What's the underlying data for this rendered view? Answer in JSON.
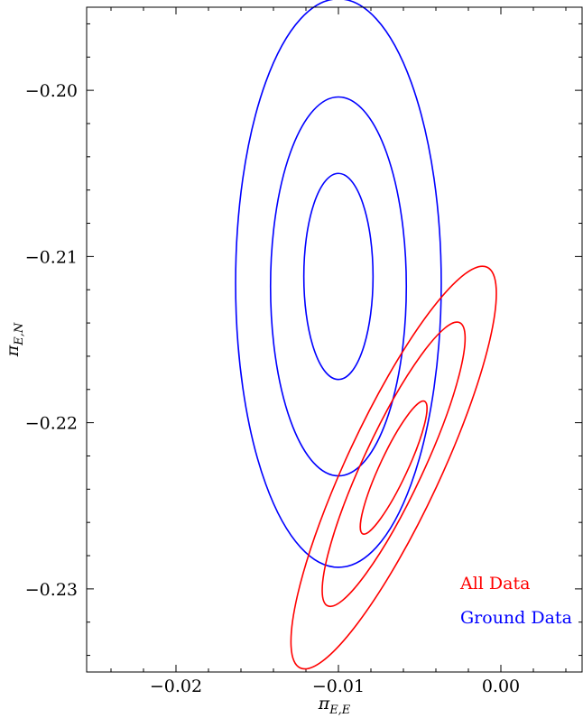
{
  "chart_data": {
    "type": "contour",
    "xlabel": "π",
    "xlabel_sub": "E,E",
    "ylabel": "π",
    "ylabel_sub": "E,N",
    "xlim": [
      -0.0255,
      0.005
    ],
    "ylim": [
      -0.235,
      -0.195
    ],
    "x_ticks_major": [
      -0.02,
      -0.01,
      0.0
    ],
    "x_tick_labels": [
      "−0.02",
      "−0.01",
      "0.00"
    ],
    "y_ticks_major": [
      -0.2,
      -0.21,
      -0.22,
      -0.23
    ],
    "y_tick_labels": [
      "−0.20",
      "−0.21",
      "−0.22",
      "−0.23"
    ],
    "minor_step_x": 0.002,
    "minor_step_y": 0.002,
    "legend": {
      "placement": "lower-right",
      "entries": [
        {
          "label": "All Data",
          "color": "#ff0000"
        },
        {
          "label": "Ground Data",
          "color": "#0000ff"
        }
      ]
    },
    "series": [
      {
        "name": "Ground Data",
        "color": "#0000ff",
        "contours": [
          {
            "center": [
              -0.01,
              -0.2112
            ],
            "half_width": 0.00213,
            "half_height": 0.0062,
            "angle": 0
          },
          {
            "center": [
              -0.01,
              -0.2118
            ],
            "half_width": 0.00418,
            "half_height": 0.0114,
            "angle": 0
          },
          {
            "center": [
              -0.01,
              -0.2116
            ],
            "half_width": 0.00633,
            "half_height": 0.0171,
            "angle": 0
          }
        ]
      },
      {
        "name": "All Data",
        "color": "#ff0000",
        "contours": [
          {
            "center": [
              -0.0066,
              -0.2227
            ],
            "half_width": 0.00085,
            "half_height": 0.0044,
            "angle": 25
          },
          {
            "center": [
              -0.0066,
              -0.2225
            ],
            "half_width": 0.00185,
            "half_height": 0.0094,
            "angle": 25
          },
          {
            "center": [
              -0.0066,
              -0.2227
            ],
            "half_width": 0.00289,
            "half_height": 0.0133,
            "angle": 25
          }
        ]
      }
    ]
  }
}
